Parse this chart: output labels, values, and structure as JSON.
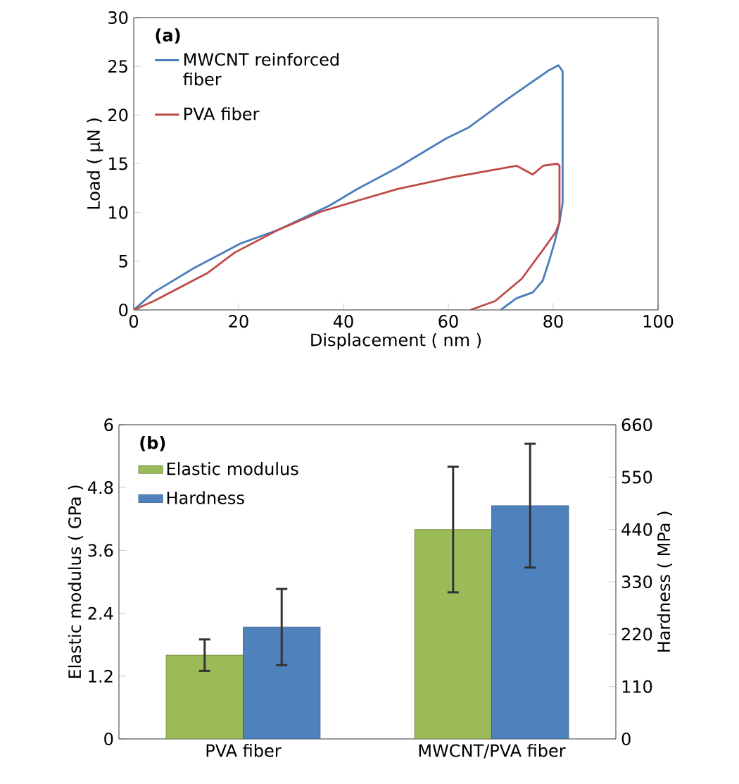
{
  "chart_data": [
    {
      "type": "line",
      "xlabel": "Displacement ( nm )",
      "ylabel": "Load ( μN )",
      "annotations": [
        "(a)"
      ],
      "xlim": [
        0,
        100
      ],
      "xticks": [
        0,
        20,
        40,
        60,
        80,
        100
      ],
      "ylim": [
        0,
        30
      ],
      "yticks": [
        0,
        5,
        10,
        15,
        20,
        25,
        30
      ],
      "legend": "top left",
      "grid": false,
      "series": [
        {
          "name": "MWCNT reinforced fiber",
          "color": "#4a7ebb",
          "x": [
            0,
            3.8,
            11.5,
            20.3,
            27.5,
            37.3,
            42.6,
            50.3,
            59.6,
            63.8,
            70.9,
            79.2,
            81,
            81.8,
            81.8,
            81.2,
            80.3,
            79.2,
            78,
            76.1,
            73,
            70
          ],
          "values": [
            0,
            1.8,
            4.3,
            6.8,
            8.2,
            10.7,
            12.4,
            14.6,
            17.6,
            18.7,
            21.5,
            24.6,
            25.1,
            24.5,
            11,
            9,
            7,
            5,
            3,
            1.8,
            1.2,
            0
          ]
        },
        {
          "name": "PVA fiber",
          "color": "#be4b48",
          "x": [
            0,
            3.8,
            14.1,
            19.3,
            27.5,
            35.8,
            42.6,
            50.3,
            60.6,
            73,
            76.1,
            78.1,
            80.8,
            81.2,
            81.2,
            80.5,
            78.1,
            74,
            68.9,
            64.2
          ],
          "values": [
            0,
            0.9,
            3.8,
            5.9,
            8.2,
            10.1,
            11.2,
            12.4,
            13.6,
            14.8,
            13.9,
            14.8,
            15,
            14.8,
            9,
            8,
            6.2,
            3.2,
            0.9,
            0
          ]
        }
      ]
    },
    {
      "type": "bar",
      "ylabel": "Elastic modulus ( GPa )",
      "y2label": "Hardness ( MPa )",
      "annotations": [
        "(b)"
      ],
      "categories": [
        "PVA fiber",
        "MWCNT/PVA fiber"
      ],
      "ylim": [
        0,
        6
      ],
      "yticks": [
        0,
        1.2,
        2.4,
        3.6,
        4.8,
        6
      ],
      "y2lim": [
        0,
        660
      ],
      "y2ticks": [
        0,
        110,
        220,
        330,
        440,
        550,
        660
      ],
      "legend": "top left",
      "grid": false,
      "series": [
        {
          "name": "Elastic modulus",
          "color": "#9bbb59",
          "values": [
            1.6,
            4.0
          ],
          "errors": [
            0.3,
            1.2
          ]
        },
        {
          "name": "Hardness",
          "color": "#4f81bd",
          "values": [
            235,
            490
          ],
          "errors": [
            80,
            130
          ],
          "axis": "y2"
        }
      ]
    }
  ]
}
